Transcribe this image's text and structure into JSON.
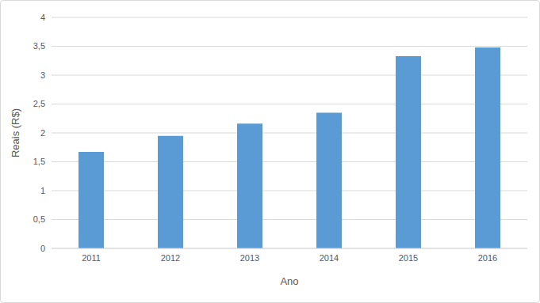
{
  "chart_data": {
    "type": "bar",
    "x_label": "Ano",
    "y_label": "Reais (R$)",
    "categories": [
      "2011",
      "2012",
      "2013",
      "2014",
      "2015",
      "2016"
    ],
    "values": [
      1.67,
      1.95,
      2.16,
      2.35,
      3.33,
      3.48
    ],
    "color": "#5b9bd5",
    "ylim": [
      0,
      4
    ],
    "yticks": [
      0,
      {
        "value": 0.5,
        "label": "0,5"
      },
      1,
      {
        "value": 1.5,
        "label": "1,5"
      },
      2,
      {
        "value": 2.5,
        "label": "2,5"
      },
      3,
      {
        "value": 3.5,
        "label": "3,5"
      },
      4
    ],
    "grid": true
  }
}
